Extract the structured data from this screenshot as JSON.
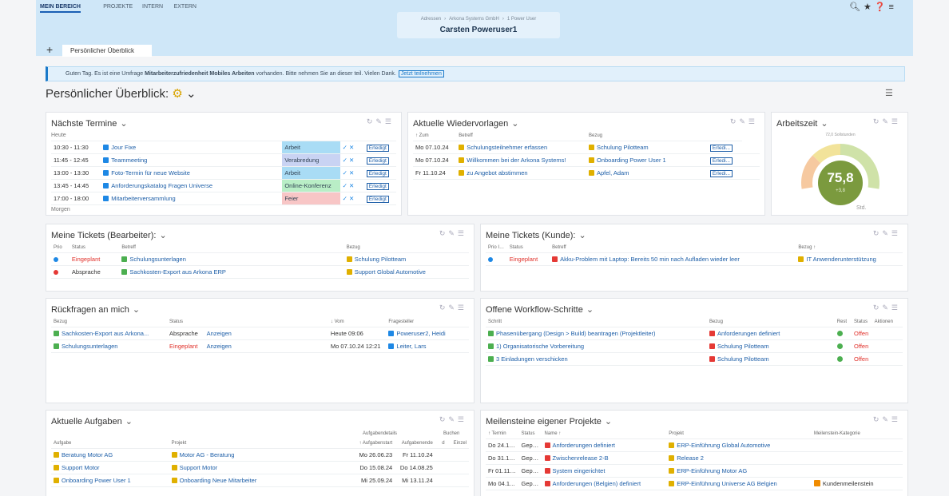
{
  "nav": [
    "MEIN BEREICH",
    "PROJEKTE",
    "INTERN",
    "EXTERN"
  ],
  "breadcrumb": [
    "Adressen",
    "Arkona Systems GmbH",
    "1 Power User"
  ],
  "user": "Carsten Poweruser1",
  "tab": "Persönlicher Überblick",
  "notice": {
    "before": "Guten Tag. Es ist eine Umfrage ",
    "bold": "Mitarbeiterzufriedenheit Mobiles Arbeiten",
    "after": " vorhanden. Bitte nehmen Sie an dieser teil. Vielen Dank.",
    "button": "Jetzt teilnehmen"
  },
  "page_title": "Persönlicher Überblick:",
  "termine": {
    "title": "Nächste Termine",
    "group": "Heute",
    "footer": "Morgen",
    "rows": [
      [
        "10:30 - 11:30",
        "Jour Fixe",
        "Arbeit",
        "Erledigt"
      ],
      [
        "11:45 - 12:45",
        "Teammeeting",
        "Verabredung",
        "Erledigt"
      ],
      [
        "13:00 - 13:30",
        "Foto-Termin für neue Website",
        "Arbeit",
        "Erledigt"
      ],
      [
        "13:45 - 14:45",
        "Anforderungskatalog Fragen Universe",
        "Online-Konferenz",
        "Erledigt"
      ],
      [
        "17:00 - 18:00",
        "Mitarbeiterversammlung",
        "Feier",
        "Erledigt"
      ]
    ],
    "category_colors": [
      "#a9dcf5",
      "#c9d3f3",
      "#a9dcf5",
      "#b9eec6",
      "#f8c6c6"
    ]
  },
  "wiedervorlagen": {
    "title": "Aktuelle Wiedervorlagen",
    "header": [
      "↑ Zum",
      "Betreff",
      "Bezug",
      null
    ],
    "rows": [
      [
        "Mo 07.10.24",
        "Schulungsteilnehmer erfassen",
        "Schulung Pilotteam",
        "Erledi..."
      ],
      [
        "Mo 07.10.24",
        "Willkommen bei der Arkona Systems!",
        "Onboarding Power User 1",
        "Erledi..."
      ],
      [
        "Fr 11.10.24",
        "zu Angebot abstimmen",
        "Apfel, Adam",
        "Erledi..."
      ]
    ]
  },
  "arbeitszeit": {
    "title": "Arbeitszeit",
    "soll": "72,0 Sollstunden",
    "value": "75,8",
    "delta": "+3,8",
    "unit": "Std."
  },
  "tickets_bearbeiter": {
    "title": "Meine Tickets (Bearbeiter):",
    "header": [
      "Prio",
      "Status",
      "Betreff",
      "Bezug"
    ],
    "rows": [
      [
        null,
        "Eingeplant",
        "Schulungsunterlagen",
        "Schulung Pilotteam"
      ],
      [
        null,
        "Absprache",
        "Sachkosten-Export aus Arkona ERP",
        "Support Global Automotive"
      ]
    ],
    "status_colors": [
      "#e0302a",
      "#333333"
    ]
  },
  "tickets_kunde": {
    "title": "Meine Tickets (Kunde):",
    "header": [
      "Prio Intern",
      "Status",
      "Betreff",
      "Bezug ↑"
    ],
    "rows": [
      [
        null,
        "Eingeplant",
        "Akku-Problem mit Laptop: Bereits 50 min nach Aufladen wieder leer",
        "IT Anwenderunterstützung"
      ]
    ],
    "status_colors": [
      "#e0302a"
    ]
  },
  "rueckfragen": {
    "title": "Rückfragen an mich",
    "header": [
      "Bezug",
      "Status",
      null,
      "↓ Vom",
      "Fragesteller"
    ],
    "rows": [
      [
        "Sachkosten-Export aus Arkona...",
        "Absprache",
        "Anzeigen",
        "Heute 09:06",
        "Poweruser2, Heidi"
      ],
      [
        "Schulungsunterlagen",
        "Eingeplant",
        "Anzeigen",
        "Mo 07.10.24 12:21",
        "Leiter, Lars"
      ]
    ],
    "status_colors": [
      "#333333",
      "#e0302a"
    ]
  },
  "workflow": {
    "title": "Offene Workflow-Schritte",
    "header": [
      "Schritt",
      "Bezug",
      "Rest",
      "Status",
      "Aktionen"
    ],
    "rows": [
      [
        "Phasenübergang (Design > Build) beantragen (Projektleiter)",
        "Anforderungen definiert",
        null,
        "Offen"
      ],
      [
        "1) Organisatorische Vorbereitung",
        "Schulung Pilotteam",
        null,
        "Offen"
      ],
      [
        "3 Einladungen verschicken",
        "Schulung Pilotteam",
        null,
        "Offen"
      ]
    ],
    "status_colors": [
      "#e0302a",
      "#e0302a",
      "#e0302a"
    ]
  },
  "aufgaben": {
    "title": "Aktuelle Aufgaben",
    "groups": [
      "Aufgabendetails",
      "Buchen"
    ],
    "header": [
      "Aufgabe",
      "Projekt",
      "↑ Aufgabenstart",
      "Aufgabenende",
      "d",
      "Einzel"
    ],
    "rows": [
      [
        "Beratung Motor AG",
        "Motor AG - Beratung",
        "Mo 26.06.23",
        "Fr 11.10.24"
      ],
      [
        "Support Motor",
        "Support Motor",
        "Do 15.08.24",
        "Do 14.08.25"
      ],
      [
        "Onboarding Power User 1",
        "Onboarding Neue Mitarbeiter",
        "Mi 25.09.24",
        "Mi 13.11.24"
      ]
    ]
  },
  "meilensteine": {
    "title": "Meilensteine eigener Projekte",
    "header": [
      "↑ Termin",
      "Status",
      "Name ↑",
      "Projekt",
      "Meilenstein-Kategorie"
    ],
    "rows": [
      [
        "Do 24.10.24",
        "Gepla...",
        "Anforderungen definiert",
        "ERP-Einführung Global Automotive"
      ],
      [
        "Do 31.10.24",
        "Gepla...",
        "Zwischenrelease 2-B",
        "Release 2"
      ],
      [
        "Fr 01.11.24",
        "Gepla...",
        "System eingerichtet",
        "ERP-Einführung Motor AG"
      ],
      [
        "Mo 04.11.24",
        "Gepla...",
        "Anforderungen (Belgien) definiert",
        "ERP-Einführung Universe AG Belgien",
        "Kundenmeilenstein"
      ]
    ]
  }
}
